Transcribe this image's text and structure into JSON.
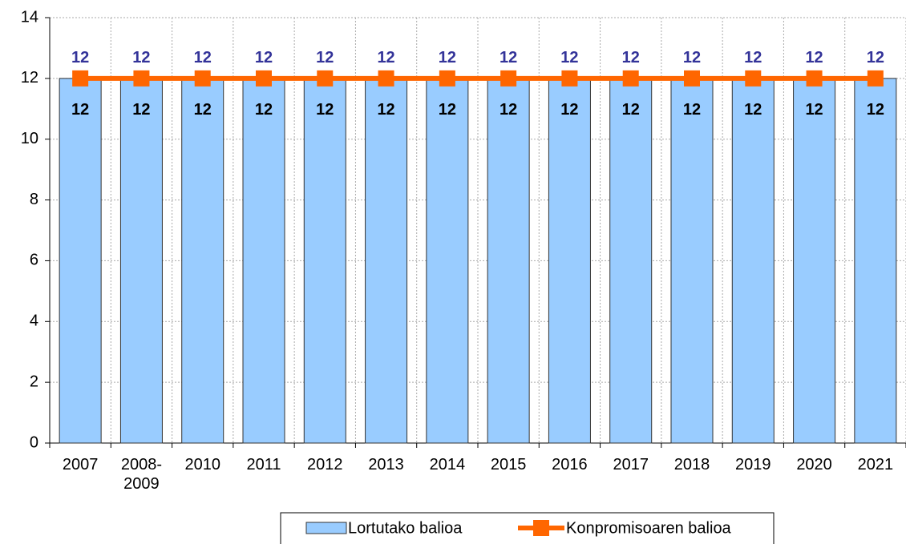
{
  "chart_data": {
    "type": "bar_line",
    "categories": [
      "2007",
      "2008-\n2009",
      "2010",
      "2011",
      "2012",
      "2013",
      "2014",
      "2015",
      "2016",
      "2017",
      "2018",
      "2019",
      "2020",
      "2021"
    ],
    "series": [
      {
        "name": "Lortutako balioa",
        "type": "bar",
        "color": "#99ccff",
        "values": [
          12,
          12,
          12,
          12,
          12,
          12,
          12,
          12,
          12,
          12,
          12,
          12,
          12,
          12
        ]
      },
      {
        "name": "Konpromisoaren balioa",
        "type": "line",
        "color": "#ff6600",
        "values": [
          12,
          12,
          12,
          12,
          12,
          12,
          12,
          12,
          12,
          12,
          12,
          12,
          12,
          12
        ]
      }
    ],
    "ylim": [
      0,
      14
    ],
    "yticks": [
      0,
      2,
      4,
      6,
      8,
      10,
      12,
      14
    ],
    "grid": true,
    "legend": "bottom"
  }
}
